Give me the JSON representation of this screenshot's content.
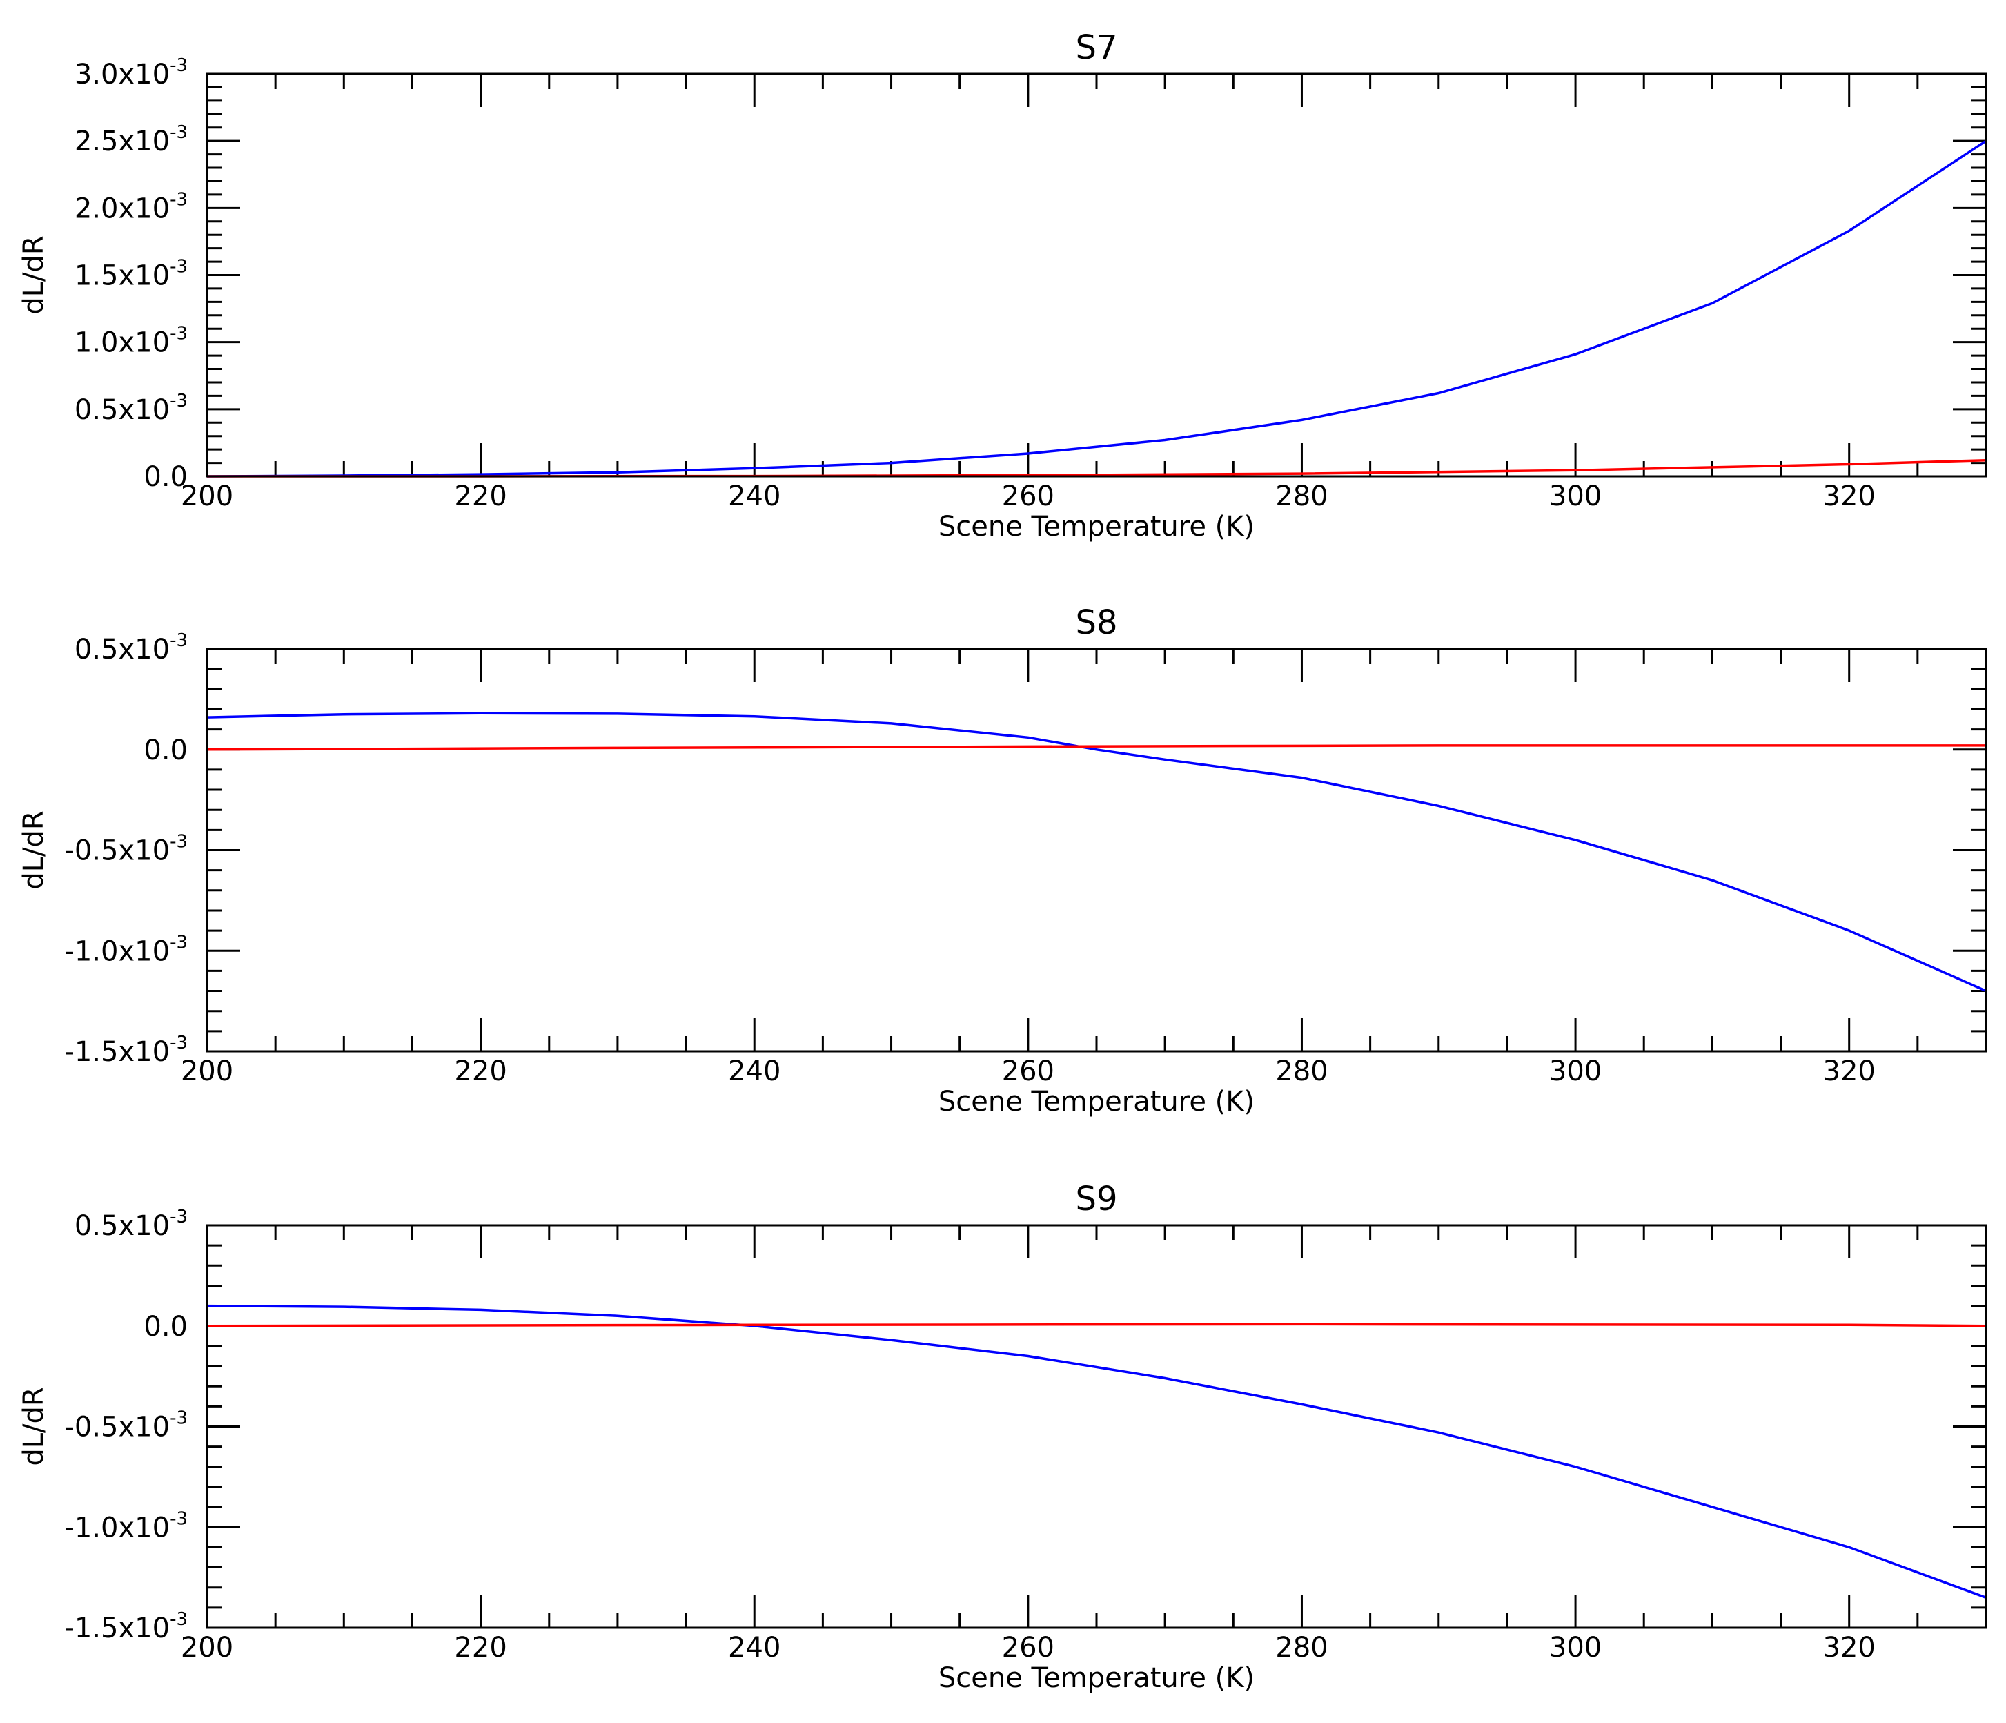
{
  "chart_data": [
    {
      "type": "line",
      "title": "S7",
      "xlabel": "Scene Temperature (K)",
      "ylabel": "dL/dR",
      "xlim": [
        200,
        330
      ],
      "ylim": [
        0,
        0.003
      ],
      "xticks": [
        200,
        220,
        240,
        260,
        280,
        300,
        320
      ],
      "x_minor_step": 5,
      "yticks": [
        {
          "value": 0.0,
          "label": "0.0",
          "exp": ""
        },
        {
          "value": 0.0005,
          "label": "0.5x10",
          "exp": "-3"
        },
        {
          "value": 0.001,
          "label": "1.0x10",
          "exp": "-3"
        },
        {
          "value": 0.0015,
          "label": "1.5x10",
          "exp": "-3"
        },
        {
          "value": 0.002,
          "label": "2.0x10",
          "exp": "-3"
        },
        {
          "value": 0.0025,
          "label": "2.5x10",
          "exp": "-3"
        },
        {
          "value": 0.003,
          "label": "3.0x10",
          "exp": "-3"
        }
      ],
      "y_minor_step": 0.0001,
      "series": [
        {
          "color": "#0000ff",
          "x": [
            200,
            210,
            220,
            230,
            240,
            250,
            260,
            270,
            280,
            290,
            300,
            310,
            320,
            330
          ],
          "y": [
            0.0,
            5e-06,
            1.5e-05,
            3e-05,
            6e-05,
            0.0001,
            0.00017,
            0.00027,
            0.00042,
            0.00062,
            0.00091,
            0.00129,
            0.00183,
            0.0025
          ]
        },
        {
          "color": "#ff0000",
          "x": [
            200,
            220,
            240,
            260,
            280,
            300,
            320,
            330
          ],
          "y": [
            0.0,
            0.0,
            2e-06,
            8e-06,
            2e-05,
            4.5e-05,
            9e-05,
            0.00012
          ]
        }
      ]
    },
    {
      "type": "line",
      "title": "S8",
      "xlabel": "Scene Temperature (K)",
      "ylabel": "dL/dR",
      "xlim": [
        200,
        330
      ],
      "ylim": [
        -0.0015,
        0.0005
      ],
      "xticks": [
        200,
        220,
        240,
        260,
        280,
        300,
        320
      ],
      "x_minor_step": 5,
      "yticks": [
        {
          "value": -0.0015,
          "label": "-1.5x10",
          "exp": "-3"
        },
        {
          "value": -0.001,
          "label": "-1.0x10",
          "exp": "-3"
        },
        {
          "value": -0.0005,
          "label": "-0.5x10",
          "exp": "-3"
        },
        {
          "value": 0.0,
          "label": "0.0",
          "exp": ""
        },
        {
          "value": 0.0005,
          "label": "0.5x10",
          "exp": "-3"
        }
      ],
      "y_minor_step": 0.0001,
      "series": [
        {
          "color": "#0000ff",
          "x": [
            200,
            210,
            220,
            230,
            240,
            250,
            260,
            265,
            270,
            280,
            290,
            300,
            310,
            320,
            330
          ],
          "y": [
            0.00016,
            0.000175,
            0.00018,
            0.000178,
            0.000165,
            0.00013,
            6e-05,
            0.0,
            -5e-05,
            -0.00014,
            -0.00028,
            -0.00045,
            -0.00065,
            -0.0009,
            -0.0012
          ]
        },
        {
          "color": "#ff0000",
          "x": [
            200,
            230,
            260,
            290,
            330
          ],
          "y": [
            0.0,
            8e-06,
            1.5e-05,
            2e-05,
            2e-05
          ]
        }
      ]
    },
    {
      "type": "line",
      "title": "S9",
      "xlabel": "Scene Temperature (K)",
      "ylabel": "dL/dR",
      "xlim": [
        200,
        330
      ],
      "ylim": [
        -0.0015,
        0.0005
      ],
      "xticks": [
        200,
        220,
        240,
        260,
        280,
        300,
        320
      ],
      "x_minor_step": 5,
      "yticks": [
        {
          "value": -0.0015,
          "label": "-1.5x10",
          "exp": "-3"
        },
        {
          "value": -0.001,
          "label": "-1.0x10",
          "exp": "-3"
        },
        {
          "value": -0.0005,
          "label": "-0.5x10",
          "exp": "-3"
        },
        {
          "value": 0.0,
          "label": "0.0",
          "exp": ""
        },
        {
          "value": 0.0005,
          "label": "0.5x10",
          "exp": "-3"
        }
      ],
      "y_minor_step": 0.0001,
      "series": [
        {
          "color": "#0000ff",
          "x": [
            200,
            210,
            220,
            230,
            240,
            250,
            260,
            270,
            280,
            290,
            300,
            310,
            320,
            330
          ],
          "y": [
            0.0001,
            9.5e-05,
            8e-05,
            5e-05,
            0.0,
            -7e-05,
            -0.00015,
            -0.00026,
            -0.00039,
            -0.00053,
            -0.0007,
            -0.0009,
            -0.0011,
            -0.00135
          ]
        },
        {
          "color": "#ff0000",
          "x": [
            200,
            240,
            280,
            320,
            330
          ],
          "y": [
            0.0,
            5e-06,
            8e-06,
            5e-06,
            0.0
          ]
        }
      ]
    }
  ]
}
